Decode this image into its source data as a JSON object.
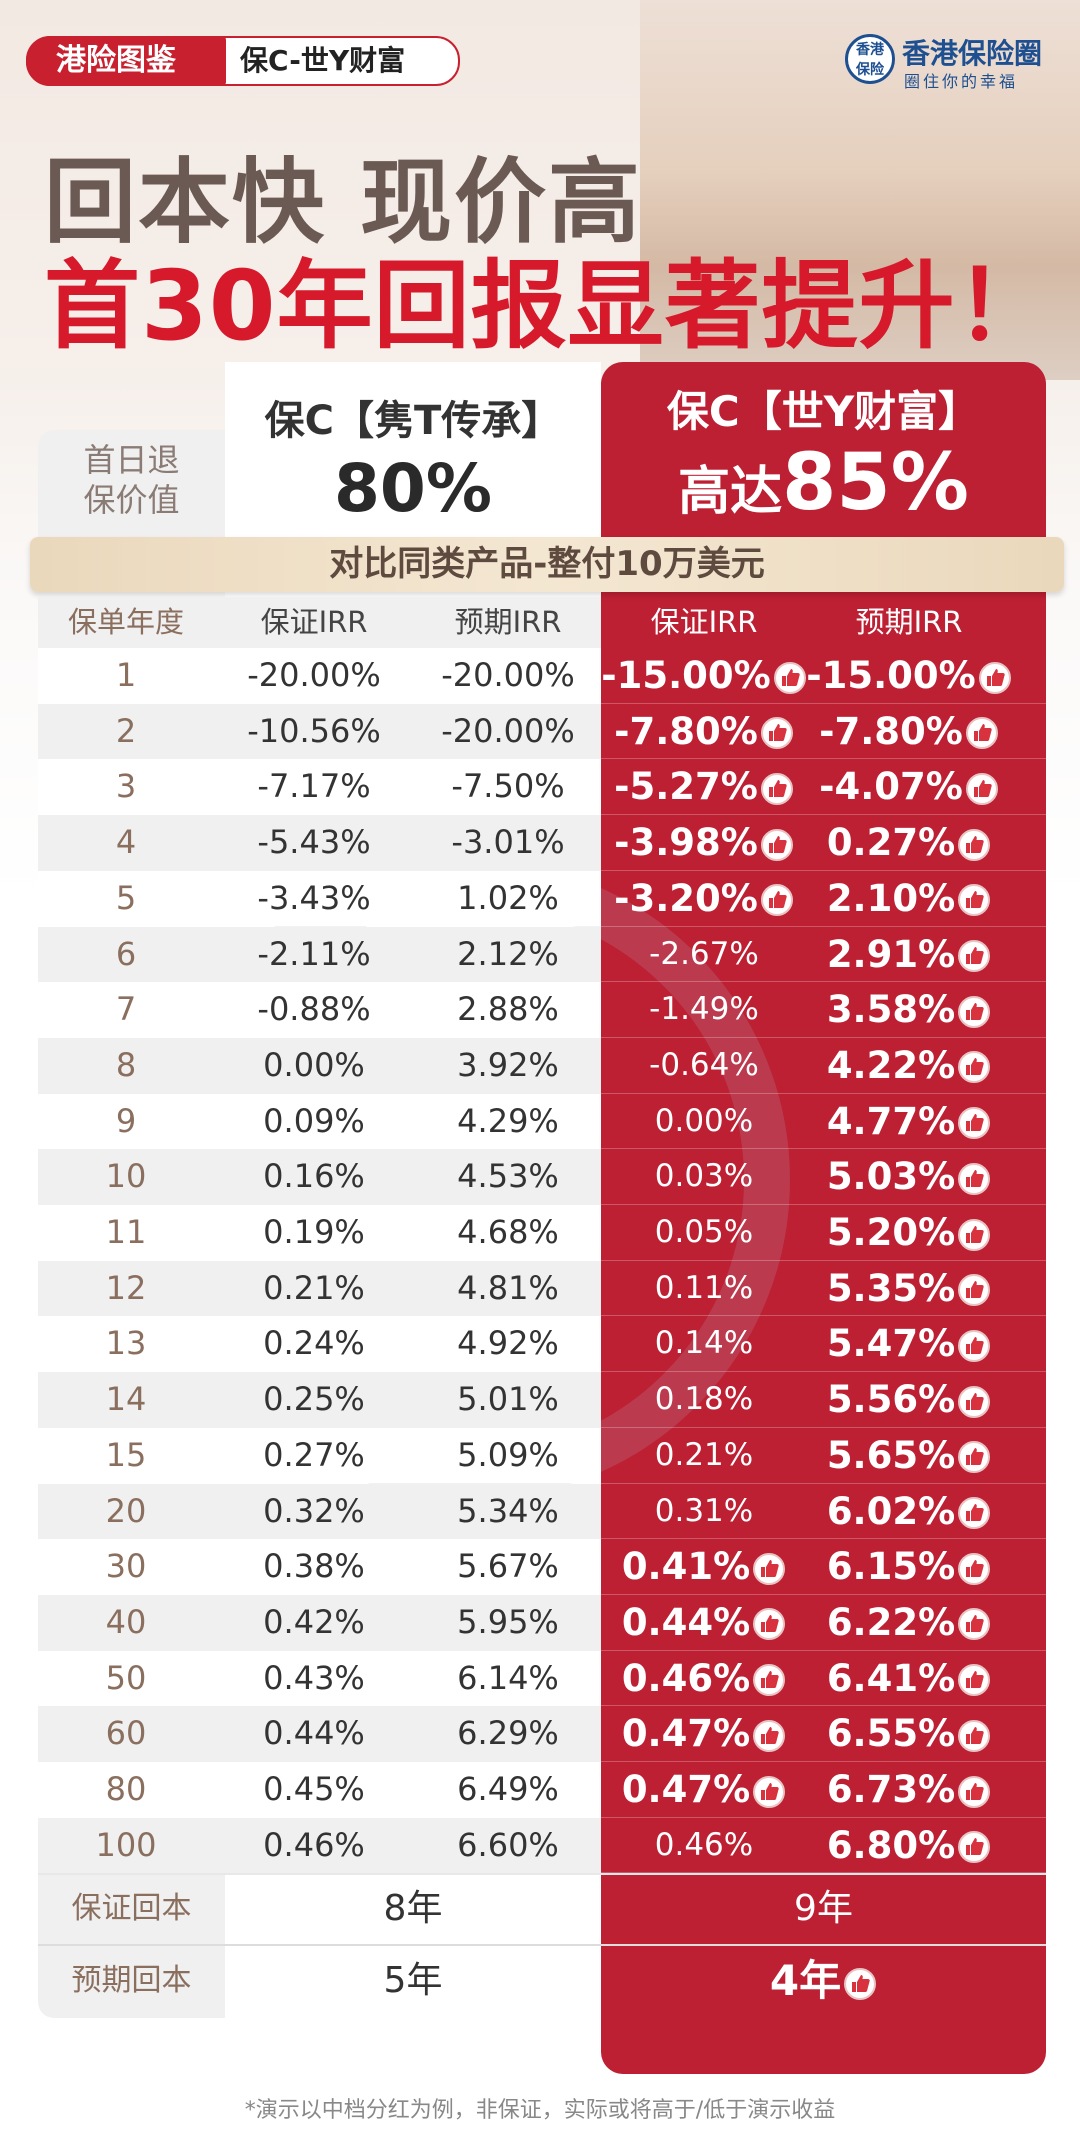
{
  "header": {
    "badge": "港险图鉴",
    "tag": "保C-世Y财富",
    "logo_mark": [
      "香港",
      "保险"
    ],
    "logo_title": "香港保险圈",
    "logo_sub": "圈住你的幸福"
  },
  "headline": [
    "回本快 现价高",
    "首30年回报显著提升！"
  ],
  "compare": {
    "row_label": [
      "首日退",
      "保价值"
    ],
    "left": {
      "name": "保C【隽T传承】",
      "value": "80%"
    },
    "right": {
      "name": "保C【世Y财富】",
      "prefix": "高达",
      "value": "85%"
    }
  },
  "banner": "对比同类产品-整付10万美元",
  "table": {
    "header": [
      "保单年度",
      "保证IRR",
      "预期IRR",
      "保证IRR",
      "预期IRR"
    ],
    "rows": [
      {
        "cells": [
          "1",
          "-20.00%",
          "-20.00%",
          "-15.00%",
          "-15.00%"
        ],
        "highlight": [
          true,
          true
        ]
      },
      {
        "cells": [
          "2",
          "-10.56%",
          "-20.00%",
          "-7.80%",
          "-7.80%"
        ],
        "highlight": [
          true,
          true
        ]
      },
      {
        "cells": [
          "3",
          "-7.17%",
          "-7.50%",
          "-5.27%",
          "-4.07%"
        ],
        "highlight": [
          true,
          true
        ]
      },
      {
        "cells": [
          "4",
          "-5.43%",
          "-3.01%",
          "-3.98%",
          "0.27%"
        ],
        "highlight": [
          true,
          true
        ]
      },
      {
        "cells": [
          "5",
          "-3.43%",
          "1.02%",
          "-3.20%",
          "2.10%"
        ],
        "highlight": [
          true,
          true
        ]
      },
      {
        "cells": [
          "6",
          "-2.11%",
          "2.12%",
          "-2.67%",
          "2.91%"
        ],
        "highlight": [
          false,
          true
        ]
      },
      {
        "cells": [
          "7",
          "-0.88%",
          "2.88%",
          "-1.49%",
          "3.58%"
        ],
        "highlight": [
          false,
          true
        ]
      },
      {
        "cells": [
          "8",
          "0.00%",
          "3.92%",
          "-0.64%",
          "4.22%"
        ],
        "highlight": [
          false,
          true
        ]
      },
      {
        "cells": [
          "9",
          "0.09%",
          "4.29%",
          "0.00%",
          "4.77%"
        ],
        "highlight": [
          false,
          true
        ]
      },
      {
        "cells": [
          "10",
          "0.16%",
          "4.53%",
          "0.03%",
          "5.03%"
        ],
        "highlight": [
          false,
          true
        ]
      },
      {
        "cells": [
          "11",
          "0.19%",
          "4.68%",
          "0.05%",
          "5.20%"
        ],
        "highlight": [
          false,
          true
        ]
      },
      {
        "cells": [
          "12",
          "0.21%",
          "4.81%",
          "0.11%",
          "5.35%"
        ],
        "highlight": [
          false,
          true
        ]
      },
      {
        "cells": [
          "13",
          "0.24%",
          "4.92%",
          "0.14%",
          "5.47%"
        ],
        "highlight": [
          false,
          true
        ]
      },
      {
        "cells": [
          "14",
          "0.25%",
          "5.01%",
          "0.18%",
          "5.56%"
        ],
        "highlight": [
          false,
          true
        ]
      },
      {
        "cells": [
          "15",
          "0.27%",
          "5.09%",
          "0.21%",
          "5.65%"
        ],
        "highlight": [
          false,
          true
        ]
      },
      {
        "cells": [
          "20",
          "0.32%",
          "5.34%",
          "0.31%",
          "6.02%"
        ],
        "highlight": [
          false,
          true
        ]
      },
      {
        "cells": [
          "30",
          "0.38%",
          "5.67%",
          "0.41%",
          "6.15%"
        ],
        "highlight": [
          true,
          true
        ]
      },
      {
        "cells": [
          "40",
          "0.42%",
          "5.95%",
          "0.44%",
          "6.22%"
        ],
        "highlight": [
          true,
          true
        ]
      },
      {
        "cells": [
          "50",
          "0.43%",
          "6.14%",
          "0.46%",
          "6.41%"
        ],
        "highlight": [
          true,
          true
        ]
      },
      {
        "cells": [
          "60",
          "0.44%",
          "6.29%",
          "0.47%",
          "6.55%"
        ],
        "highlight": [
          true,
          true
        ]
      },
      {
        "cells": [
          "80",
          "0.45%",
          "6.49%",
          "0.47%",
          "6.73%"
        ],
        "highlight": [
          true,
          true
        ]
      },
      {
        "cells": [
          "100",
          "0.46%",
          "6.60%",
          "0.46%",
          "6.80%"
        ],
        "highlight": [
          false,
          true
        ]
      }
    ],
    "summary": [
      {
        "cells": [
          "保证回本",
          "8年",
          "9年"
        ],
        "highlight": false
      },
      {
        "cells": [
          "预期回本",
          "5年",
          "4年"
        ],
        "highlight": true
      }
    ]
  },
  "footnote": "*演示以中档分红为例，非保证，实际或将高于/低于演示收益"
}
